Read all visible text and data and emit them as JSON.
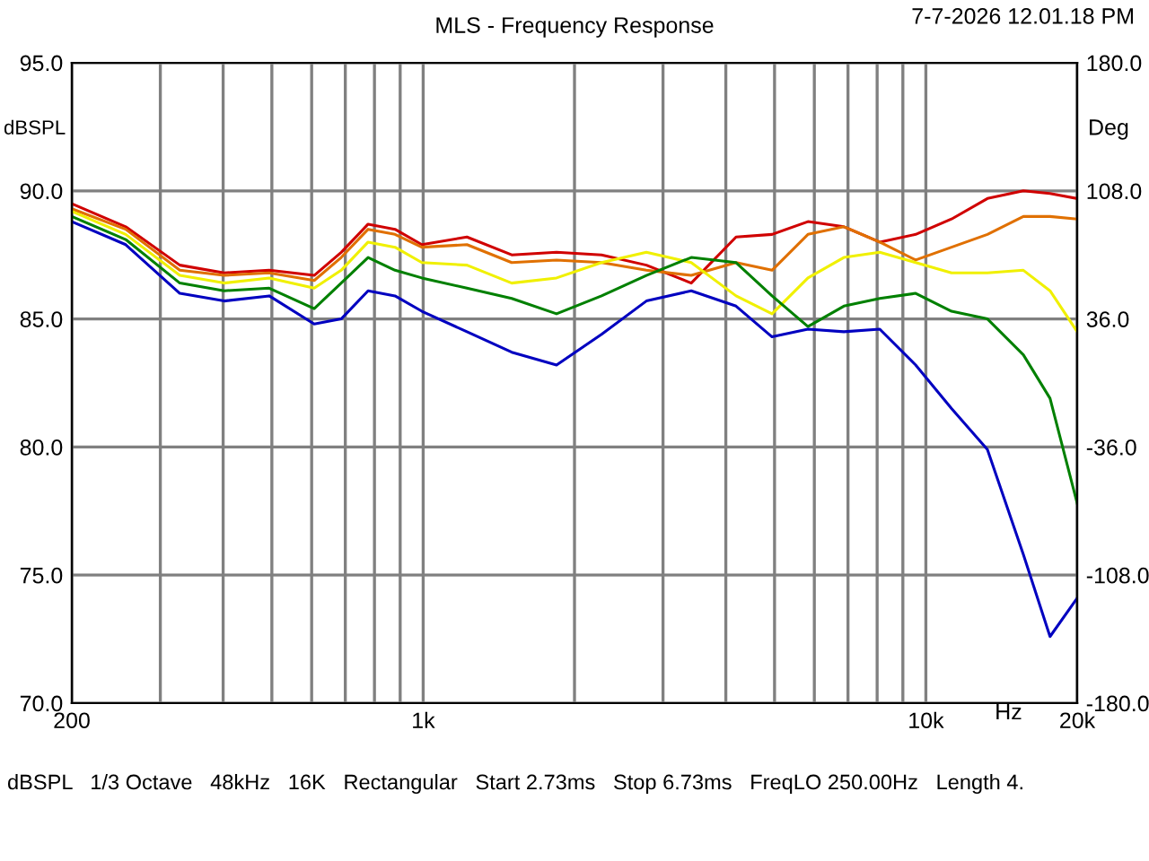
{
  "chart_data": {
    "type": "line",
    "title": "MLS - Frequency Response",
    "xlabel": "Hz",
    "ylabel": "dBSPL",
    "y2label": "Deg",
    "annotations": [
      "7-7-2026 12.01.18 PM",
      "dBSPL   1/3 Octave   48kHz   16K   Rectangular   Start 2.73ms   Stop 6.73ms   FreqLO 250.00Hz   Length 4."
    ],
    "log": "x",
    "grid": true,
    "legend": false,
    "marker": "none",
    "line_style": "solid",
    "x": [
      200,
      256,
      328,
      402,
      494,
      607,
      687,
      777,
      879,
      994,
      1222,
      1500,
      1842,
      2264,
      2780,
      3414,
      4192,
      4943,
      5827,
      6869,
      8096,
      9544,
      11248,
      13258,
      15630,
      17660,
      20000
    ],
    "series": [
      {
        "color": "#d00000",
        "values": [
          89.5,
          88.6,
          87.1,
          86.8,
          86.9,
          86.7,
          87.6,
          88.7,
          88.5,
          87.9,
          88.2,
          87.5,
          87.6,
          87.5,
          87.1,
          86.4,
          88.2,
          88.3,
          88.8,
          88.6,
          88.0,
          88.3,
          88.9,
          89.7,
          90.0,
          89.9,
          89.7
        ]
      },
      {
        "color": "#e07000",
        "values": [
          89.3,
          88.5,
          86.9,
          86.7,
          86.8,
          86.5,
          87.4,
          88.5,
          88.3,
          87.8,
          87.9,
          87.2,
          87.3,
          87.2,
          86.9,
          86.7,
          87.2,
          86.9,
          88.3,
          88.6,
          88.0,
          87.3,
          87.8,
          88.3,
          89.0,
          89.0,
          88.9
        ]
      },
      {
        "color": "#f0f000",
        "values": [
          89.2,
          88.3,
          86.7,
          86.4,
          86.6,
          86.2,
          86.9,
          88.0,
          87.8,
          87.2,
          87.1,
          86.4,
          86.6,
          87.2,
          87.6,
          87.2,
          85.9,
          85.2,
          86.6,
          87.4,
          87.6,
          87.2,
          86.8,
          86.8,
          86.9,
          86.1,
          84.5
        ]
      },
      {
        "color": "#008000",
        "values": [
          89.0,
          88.1,
          86.4,
          86.1,
          86.2,
          85.4,
          86.4,
          87.4,
          86.9,
          86.6,
          86.2,
          85.8,
          85.2,
          85.9,
          86.7,
          87.4,
          87.2,
          85.9,
          84.7,
          85.5,
          85.8,
          86.0,
          85.3,
          85.0,
          83.6,
          81.9,
          77.8
        ]
      },
      {
        "color": "#0000c0",
        "values": [
          88.8,
          87.9,
          86.0,
          85.7,
          85.9,
          84.8,
          85.0,
          86.1,
          85.9,
          85.3,
          84.5,
          83.7,
          83.2,
          84.4,
          85.7,
          86.1,
          85.5,
          84.3,
          84.6,
          84.5,
          84.6,
          83.2,
          81.5,
          79.9,
          75.8,
          72.6,
          74.1
        ]
      }
    ],
    "xlim": [
      200,
      20000
    ],
    "xticks": [
      {
        "value": 200,
        "label": "200"
      },
      {
        "value": 300,
        "label": null
      },
      {
        "value": 400,
        "label": null
      },
      {
        "value": 500,
        "label": null
      },
      {
        "value": 600,
        "label": null
      },
      {
        "value": 700,
        "label": null
      },
      {
        "value": 800,
        "label": null
      },
      {
        "value": 900,
        "label": null
      },
      {
        "value": 1000,
        "label": "1k"
      },
      {
        "value": 2000,
        "label": null
      },
      {
        "value": 3000,
        "label": null
      },
      {
        "value": 4000,
        "label": null
      },
      {
        "value": 5000,
        "label": null
      },
      {
        "value": 6000,
        "label": null
      },
      {
        "value": 7000,
        "label": null
      },
      {
        "value": 8000,
        "label": null
      },
      {
        "value": 9000,
        "label": null
      },
      {
        "value": 10000,
        "label": "10k"
      },
      {
        "value": 20000,
        "label": "20k"
      }
    ],
    "ylim": [
      70,
      95
    ],
    "yticks": [
      {
        "value": 70,
        "label": "70.0"
      },
      {
        "value": 75,
        "label": "75.0"
      },
      {
        "value": 80,
        "label": "80.0"
      },
      {
        "value": 85,
        "label": "85.0"
      },
      {
        "value": 90,
        "label": "90.0"
      },
      {
        "value": 95,
        "label": "95.0"
      }
    ],
    "y2lim": [
      -180,
      180
    ],
    "y2ticks": [
      {
        "value": -180,
        "label": "-180.0"
      },
      {
        "value": -108,
        "label": "-108.0"
      },
      {
        "value": -36,
        "label": "-36.0"
      },
      {
        "value": 36,
        "label": "36.0"
      },
      {
        "value": 108,
        "label": "108.0"
      },
      {
        "value": 180,
        "label": "180.0"
      }
    ]
  }
}
